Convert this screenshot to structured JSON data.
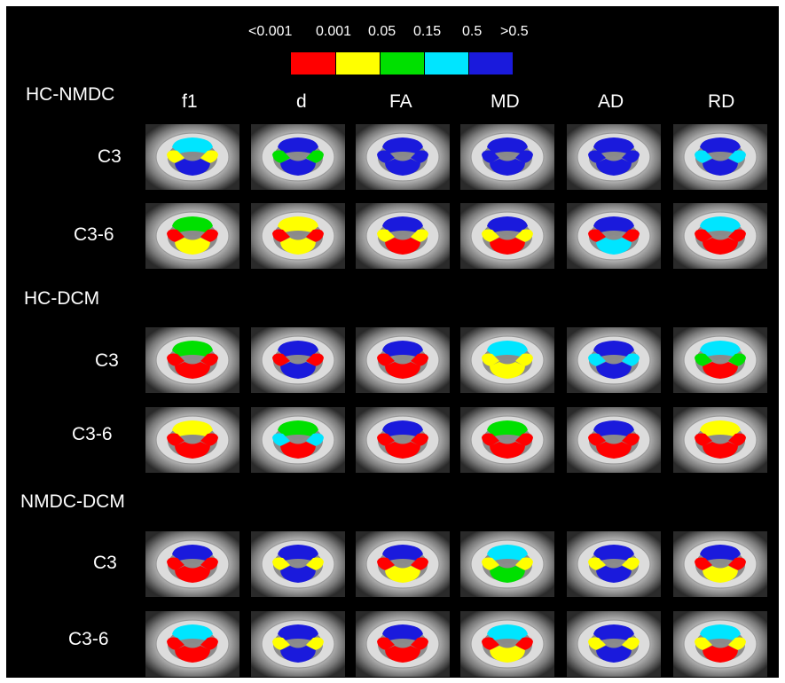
{
  "legend": {
    "labels": [
      "<0.001",
      "0.001",
      "0.05",
      "0.15",
      "0.5",
      ">0.5"
    ],
    "colors": [
      "#ff0000",
      "#ffff00",
      "#00e000",
      "#00e5ff",
      "#1a1adc"
    ]
  },
  "columns": [
    "f1",
    "d",
    "FA",
    "MD",
    "AD",
    "RD"
  ],
  "sections": [
    {
      "title": "HC-NMDC",
      "rows": [
        {
          "label": "C3",
          "cells": [
            [
              "c",
              "y",
              "b"
            ],
            [
              "b",
              "g",
              "b"
            ],
            [
              "b",
              "b",
              "b"
            ],
            [
              "b",
              "b",
              "b"
            ],
            [
              "b",
              "b",
              "b"
            ],
            [
              "b",
              "c",
              "b"
            ]
          ]
        },
        {
          "label": "C3-6",
          "cells": [
            [
              "g",
              "r",
              "y"
            ],
            [
              "y",
              "r",
              "y"
            ],
            [
              "b",
              "y",
              "r"
            ],
            [
              "b",
              "y",
              "r"
            ],
            [
              "b",
              "r",
              "c"
            ],
            [
              "c",
              "r",
              "r"
            ]
          ]
        }
      ]
    },
    {
      "title": "HC-DCM",
      "rows": [
        {
          "label": "C3",
          "cells": [
            [
              "g",
              "r",
              "r"
            ],
            [
              "b",
              "r",
              "b"
            ],
            [
              "b",
              "r",
              "r"
            ],
            [
              "c",
              "y",
              "y"
            ],
            [
              "b",
              "c",
              "b"
            ],
            [
              "c",
              "g",
              "r"
            ]
          ]
        },
        {
          "label": "C3-6",
          "cells": [
            [
              "y",
              "r",
              "r"
            ],
            [
              "g",
              "c",
              "r"
            ],
            [
              "b",
              "r",
              "r"
            ],
            [
              "g",
              "r",
              "r"
            ],
            [
              "b",
              "r",
              "r"
            ],
            [
              "y",
              "r",
              "r"
            ]
          ]
        }
      ]
    },
    {
      "title": "NMDC-DCM",
      "rows": [
        {
          "label": "C3",
          "cells": [
            [
              "b",
              "r",
              "r"
            ],
            [
              "b",
              "y",
              "b"
            ],
            [
              "b",
              "r",
              "y"
            ],
            [
              "c",
              "y",
              "g"
            ],
            [
              "b",
              "y",
              "b"
            ],
            [
              "b",
              "r",
              "y"
            ]
          ]
        },
        {
          "label": "C3-6",
          "cells": [
            [
              "c",
              "r",
              "r"
            ],
            [
              "b",
              "y",
              "b"
            ],
            [
              "b",
              "r",
              "r"
            ],
            [
              "c",
              "r",
              "y"
            ],
            [
              "b",
              "y",
              "b"
            ],
            [
              "c",
              "y",
              "r"
            ]
          ]
        }
      ]
    }
  ]
}
